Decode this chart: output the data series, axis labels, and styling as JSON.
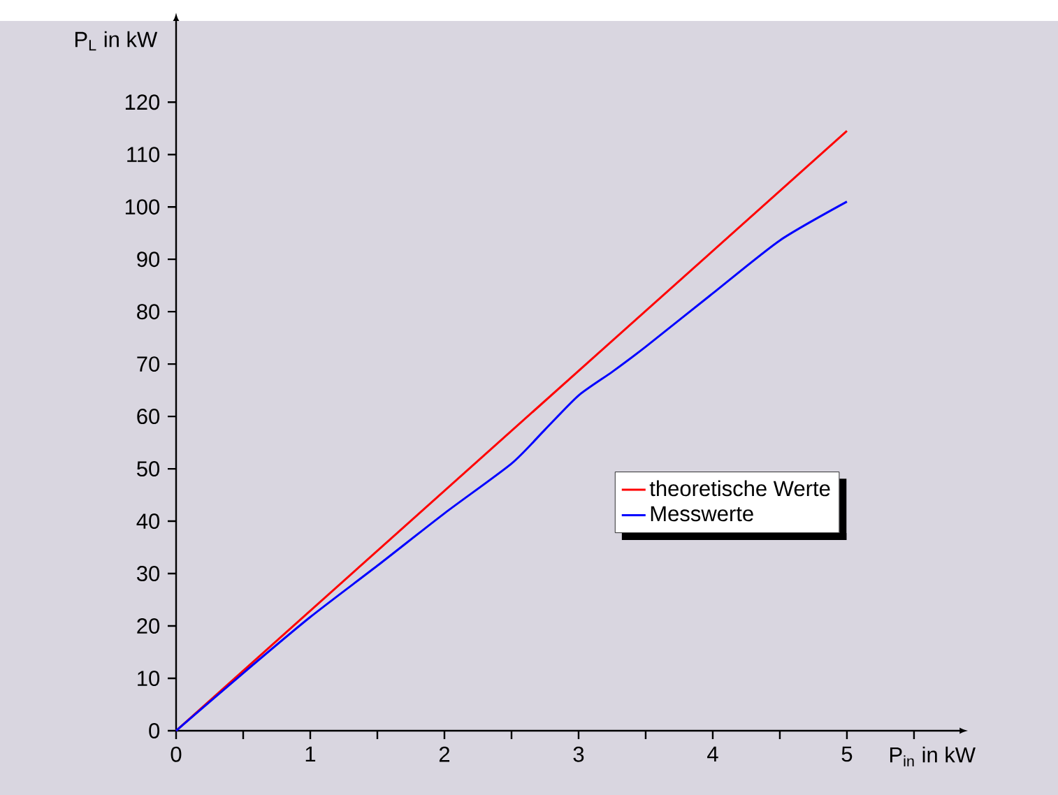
{
  "chart_data": {
    "type": "line",
    "xlabel": "P$_{in}$ in kW",
    "ylabel": "P$_{L}$ in kW",
    "xlim": [
      0,
      5.84
    ],
    "ylim": [
      0,
      135.5
    ],
    "xticks": [
      0,
      {
        "value": 0.5,
        "label": null
      },
      1,
      {
        "value": 1.5,
        "label": null
      },
      2,
      {
        "value": 2.5,
        "label": null
      },
      3,
      {
        "value": 3.5,
        "label": null
      },
      4,
      {
        "value": 4.5,
        "label": null
      },
      5,
      {
        "value": 5.5,
        "label": null
      }
    ],
    "yticks": [
      0,
      10,
      20,
      30,
      40,
      50,
      60,
      70,
      80,
      90,
      100,
      110,
      120
    ],
    "legend": "right",
    "grid": false,
    "marker": "none",
    "line_style": "solid",
    "series": [
      {
        "name": "theoretische Werte",
        "color": "#ff0000",
        "x": [
          0,
          5
        ],
        "values": [
          0,
          114.5
        ]
      },
      {
        "name": "Messwerte",
        "color": "#0000ff",
        "x": [
          0,
          0.5,
          1,
          1.5,
          2,
          2.5,
          2.75,
          3,
          3.25,
          3.5,
          4,
          4.5,
          5
        ],
        "values": [
          0,
          11,
          21.7,
          31.5,
          41.5,
          51,
          57.5,
          64,
          68.5,
          73.3,
          83.5,
          93.6,
          101
        ]
      }
    ]
  }
}
